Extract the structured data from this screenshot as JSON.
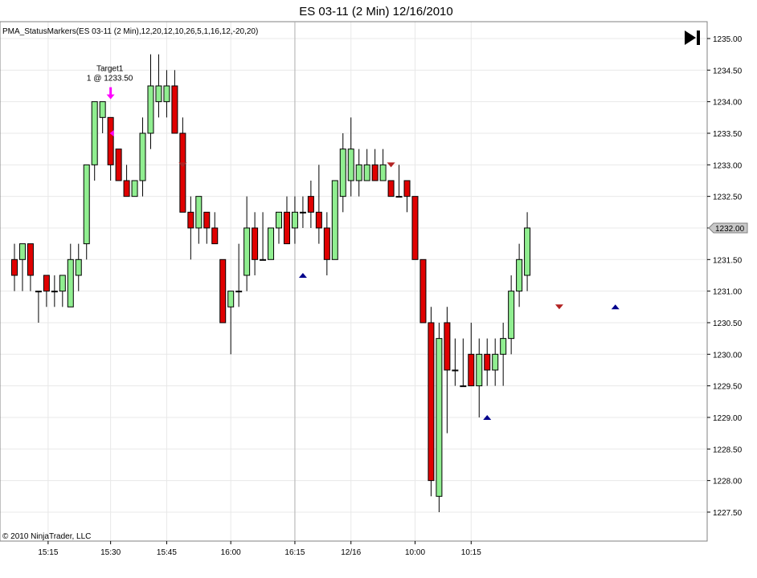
{
  "window": {
    "title": "ES 03-11 (2 Min)  12/16/2010"
  },
  "indicator_label": "PMA_StatusMarkers(ES 03-11 (2 Min),12,20,12,10,26,5,1,16,12,-20,20)",
  "copyright": "© 2010 NinjaTrader, LLC",
  "play_button_icon": "skip-to-end-icon",
  "colors": {
    "up": "#90EE90",
    "down": "#E00000",
    "marker_up": "#00008B",
    "marker_down": "#B22222",
    "annotation": "#FF00FF",
    "grid": "#E8E8E8"
  },
  "chart_data": {
    "type": "candlestick",
    "title": "ES 03-11 (2 Min)  12/16/2010",
    "ylim": [
      1227.25,
      1235.25
    ],
    "y_ticks": [
      "1235.00",
      "1234.50",
      "1234.00",
      "1233.50",
      "1233.00",
      "1232.50",
      "1232.00",
      "1231.50",
      "1231.00",
      "1230.50",
      "1230.00",
      "1229.50",
      "1229.00",
      "1228.50",
      "1228.00",
      "1227.50"
    ],
    "x_ticks": [
      {
        "label": "15:15",
        "bar": 4
      },
      {
        "label": "15:30",
        "bar": 12
      },
      {
        "label": "15:45",
        "bar": 19
      },
      {
        "label": "16:00",
        "bar": 27
      },
      {
        "label": "16:15",
        "bar": 35
      },
      {
        "label": "12/16",
        "bar": 42
      },
      {
        "label": "10:00",
        "bar": 50
      },
      {
        "label": "10:15",
        "bar": 57
      }
    ],
    "last_price": "1232.00",
    "candles": [
      {
        "o": 1231.5,
        "h": 1231.75,
        "l": 1231.0,
        "c": 1231.25
      },
      {
        "o": 1231.5,
        "h": 1231.75,
        "l": 1231.0,
        "c": 1231.75
      },
      {
        "o": 1231.75,
        "h": 1231.75,
        "l": 1231.0,
        "c": 1231.25
      },
      {
        "o": 1231.0,
        "h": 1231.0,
        "l": 1230.5,
        "c": 1231.0
      },
      {
        "o": 1231.25,
        "h": 1231.25,
        "l": 1230.75,
        "c": 1231.0
      },
      {
        "o": 1231.0,
        "h": 1231.25,
        "l": 1230.75,
        "c": 1231.0
      },
      {
        "o": 1231.0,
        "h": 1231.25,
        "l": 1230.75,
        "c": 1231.25
      },
      {
        "o": 1230.75,
        "h": 1231.75,
        "l": 1230.75,
        "c": 1231.5
      },
      {
        "o": 1231.25,
        "h": 1231.75,
        "l": 1231.0,
        "c": 1231.5
      },
      {
        "o": 1231.75,
        "h": 1233.0,
        "l": 1231.5,
        "c": 1233.0
      },
      {
        "o": 1233.0,
        "h": 1234.0,
        "l": 1232.75,
        "c": 1234.0
      },
      {
        "o": 1233.75,
        "h": 1234.0,
        "l": 1233.5,
        "c": 1234.0
      },
      {
        "o": 1233.75,
        "h": 1233.75,
        "l": 1232.75,
        "c": 1233.0
      },
      {
        "o": 1233.25,
        "h": 1233.25,
        "l": 1232.75,
        "c": 1232.75
      },
      {
        "o": 1232.75,
        "h": 1233.0,
        "l": 1232.5,
        "c": 1232.5
      },
      {
        "o": 1232.5,
        "h": 1232.75,
        "l": 1232.5,
        "c": 1232.75
      },
      {
        "o": 1232.75,
        "h": 1233.75,
        "l": 1232.5,
        "c": 1233.5
      },
      {
        "o": 1233.5,
        "h": 1234.75,
        "l": 1233.25,
        "c": 1234.25
      },
      {
        "o": 1234.0,
        "h": 1234.75,
        "l": 1233.75,
        "c": 1234.25
      },
      {
        "o": 1234.0,
        "h": 1234.5,
        "l": 1233.75,
        "c": 1234.25
      },
      {
        "o": 1234.25,
        "h": 1234.5,
        "l": 1233.5,
        "c": 1233.5
      },
      {
        "o": 1233.5,
        "h": 1233.75,
        "l": 1232.25,
        "c": 1232.25
      },
      {
        "o": 1232.25,
        "h": 1232.5,
        "l": 1231.5,
        "c": 1232.0
      },
      {
        "o": 1232.0,
        "h": 1232.5,
        "l": 1231.75,
        "c": 1232.5
      },
      {
        "o": 1232.25,
        "h": 1232.25,
        "l": 1231.75,
        "c": 1232.0
      },
      {
        "o": 1232.0,
        "h": 1232.25,
        "l": 1231.75,
        "c": 1231.75
      },
      {
        "o": 1231.5,
        "h": 1231.5,
        "l": 1230.5,
        "c": 1230.5
      },
      {
        "o": 1230.75,
        "h": 1231.0,
        "l": 1230.0,
        "c": 1231.0
      },
      {
        "o": 1231.0,
        "h": 1231.75,
        "l": 1230.75,
        "c": 1231.0
      },
      {
        "o": 1231.25,
        "h": 1232.5,
        "l": 1231.0,
        "c": 1232.0
      },
      {
        "o": 1232.0,
        "h": 1232.25,
        "l": 1231.25,
        "c": 1231.5
      },
      {
        "o": 1231.5,
        "h": 1232.25,
        "l": 1231.5,
        "c": 1231.5
      },
      {
        "o": 1231.5,
        "h": 1232.0,
        "l": 1231.5,
        "c": 1232.0
      },
      {
        "o": 1232.0,
        "h": 1232.25,
        "l": 1231.75,
        "c": 1232.25
      },
      {
        "o": 1232.25,
        "h": 1232.5,
        "l": 1231.75,
        "c": 1231.75
      },
      {
        "o": 1232.0,
        "h": 1232.5,
        "l": 1231.75,
        "c": 1232.25
      },
      {
        "o": 1232.25,
        "h": 1232.5,
        "l": 1232.0,
        "c": 1232.25
      },
      {
        "o": 1232.5,
        "h": 1232.75,
        "l": 1232.0,
        "c": 1232.25
      },
      {
        "o": 1232.25,
        "h": 1233.0,
        "l": 1231.75,
        "c": 1232.0
      },
      {
        "o": 1232.0,
        "h": 1232.25,
        "l": 1231.25,
        "c": 1231.5
      },
      {
        "o": 1231.5,
        "h": 1232.75,
        "l": 1231.5,
        "c": 1232.75
      },
      {
        "o": 1232.5,
        "h": 1233.5,
        "l": 1232.25,
        "c": 1233.25
      },
      {
        "o": 1232.75,
        "h": 1233.75,
        "l": 1232.5,
        "c": 1233.25
      },
      {
        "o": 1232.75,
        "h": 1233.25,
        "l": 1232.5,
        "c": 1233.0
      },
      {
        "o": 1232.75,
        "h": 1233.25,
        "l": 1232.75,
        "c": 1233.0
      },
      {
        "o": 1233.0,
        "h": 1233.25,
        "l": 1232.75,
        "c": 1232.75
      },
      {
        "o": 1232.75,
        "h": 1233.25,
        "l": 1232.75,
        "c": 1233.0
      },
      {
        "o": 1232.75,
        "h": 1232.75,
        "l": 1232.5,
        "c": 1232.5
      },
      {
        "o": 1232.5,
        "h": 1233.0,
        "l": 1232.5,
        "c": 1232.5
      },
      {
        "o": 1232.75,
        "h": 1232.75,
        "l": 1232.25,
        "c": 1232.5
      },
      {
        "o": 1232.5,
        "h": 1232.5,
        "l": 1231.5,
        "c": 1231.5
      },
      {
        "o": 1231.5,
        "h": 1231.5,
        "l": 1230.5,
        "c": 1230.5
      },
      {
        "o": 1230.5,
        "h": 1230.75,
        "l": 1227.75,
        "c": 1228.0
      },
      {
        "o": 1227.75,
        "h": 1230.5,
        "l": 1227.5,
        "c": 1230.25
      },
      {
        "o": 1230.5,
        "h": 1230.75,
        "l": 1228.75,
        "c": 1229.75
      },
      {
        "o": 1229.75,
        "h": 1230.25,
        "l": 1229.5,
        "c": 1229.75
      },
      {
        "o": 1229.5,
        "h": 1230.25,
        "l": 1229.5,
        "c": 1229.5
      },
      {
        "o": 1230.0,
        "h": 1230.5,
        "l": 1229.5,
        "c": 1229.5
      },
      {
        "o": 1229.5,
        "h": 1230.25,
        "l": 1229.0,
        "c": 1230.0
      },
      {
        "o": 1230.0,
        "h": 1230.25,
        "l": 1229.5,
        "c": 1229.75
      },
      {
        "o": 1229.75,
        "h": 1230.25,
        "l": 1229.5,
        "c": 1230.0
      },
      {
        "o": 1230.0,
        "h": 1230.5,
        "l": 1229.5,
        "c": 1230.25
      },
      {
        "o": 1230.25,
        "h": 1231.25,
        "l": 1230.0,
        "c": 1231.0
      },
      {
        "o": 1231.0,
        "h": 1231.75,
        "l": 1230.75,
        "c": 1231.5
      },
      {
        "o": 1231.25,
        "h": 1232.25,
        "l": 1231.0,
        "c": 1232.0
      }
    ],
    "markers": [
      {
        "type": "down",
        "bar": 21,
        "price": 1233.0
      },
      {
        "type": "down",
        "bar": 47,
        "price": 1233.0
      },
      {
        "type": "down",
        "bar": 68,
        "price": 1230.75
      },
      {
        "type": "up",
        "bar": 36,
        "price": 1231.25
      },
      {
        "type": "up",
        "bar": 59,
        "price": 1229.0
      },
      {
        "type": "up",
        "bar": 75,
        "price": 1230.75
      }
    ],
    "annotation": {
      "label_1": "Target1",
      "label_2": "1 @ 1233.50",
      "bar": 12,
      "price": 1234.0,
      "left_arrow_bar": 12,
      "left_arrow_price": 1233.5
    },
    "vertical_line_bar": 35
  }
}
